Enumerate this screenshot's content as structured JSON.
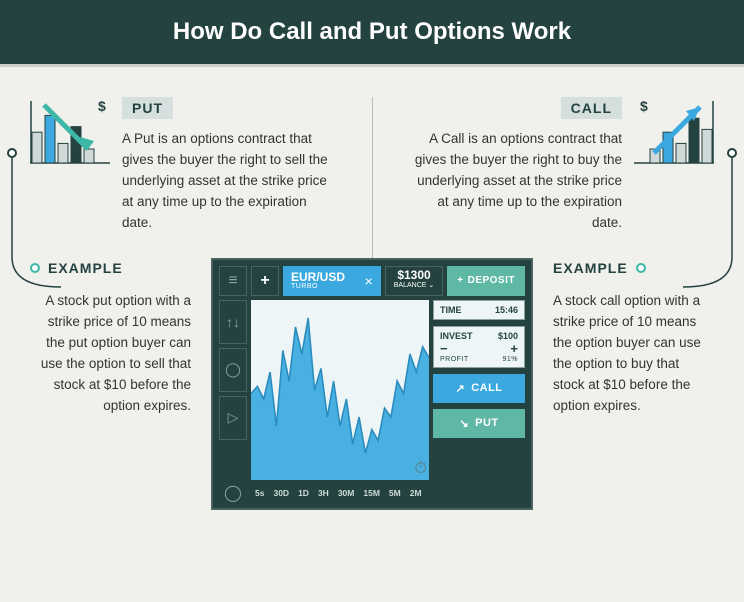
{
  "header": {
    "title": "How Do Call and Put Options Work"
  },
  "colors": {
    "bg_dark": "#24423f",
    "bg_light": "#f0f0ed",
    "teal": "#5fb7a6",
    "teal_light": "#3db7a6",
    "blue": "#3ba9e0",
    "tag_bg": "#d4dfde",
    "text": "#333333",
    "chart_bg": "#eef5f7",
    "muted": "#8aa3a0"
  },
  "put": {
    "tag": "PUT",
    "definition": "A Put is an options contract that gives the buyer the right to sell the underlying asset at the strike price at any time up to the expiration date.",
    "illus": {
      "bars": [
        0.55,
        0.85,
        0.35,
        0.65,
        0.25
      ],
      "bar_colors": [
        "#cfd9d7",
        "#3ba9e0",
        "#cfd9d7",
        "#24423f",
        "#cfd9d7"
      ],
      "arrow_color": "#3db7a6",
      "arrow_dir": "down",
      "dollar": "$"
    },
    "example_label": "EXAMPLE",
    "example": "A stock put option with a strike price of 10 means the put option buyer can use the option to sell that stock at $10 before the option expires."
  },
  "call": {
    "tag": "CALL",
    "definition": "A Call is an options contract that gives the buyer the right to buy the underlying asset at the strike price at any time up to the expiration date.",
    "illus": {
      "bars": [
        0.25,
        0.55,
        0.35,
        0.8,
        0.6
      ],
      "bar_colors": [
        "#cfd9d7",
        "#3ba9e0",
        "#cfd9d7",
        "#24423f",
        "#cfd9d7"
      ],
      "arrow_color": "#3ba9e0",
      "arrow_dir": "up",
      "dollar": "$"
    },
    "example_label": "EXAMPLE",
    "example": "A stock call option with a strike price of 10 means the option buyer can use the option to buy that stock at $10 before the option expires."
  },
  "widget": {
    "menu_icon": "≡",
    "add_icon": "+",
    "pair": "EUR/USD",
    "pair_sub": "TURBO",
    "close_icon": "×",
    "balance_amount": "$1300",
    "balance_label": "BALANCE ⌄",
    "deposit_label": "DEPOSIT",
    "deposit_icon": "+",
    "side_icons": [
      "↑↓",
      "◯",
      "▷"
    ],
    "chart": {
      "type": "area",
      "points": [
        0.48,
        0.52,
        0.45,
        0.6,
        0.3,
        0.72,
        0.55,
        0.85,
        0.7,
        0.9,
        0.5,
        0.62,
        0.35,
        0.55,
        0.3,
        0.45,
        0.2,
        0.35,
        0.15,
        0.28,
        0.22,
        0.4,
        0.35,
        0.55,
        0.48,
        0.7,
        0.6,
        0.74,
        0.68
      ],
      "fill": "#3ba9e0",
      "stroke": "#2a8bbd",
      "bg": "#eef5f7",
      "ylim": [
        0,
        1
      ]
    },
    "time_label": "TIME",
    "time_value": "15:46",
    "invest_label": "INVEST",
    "invest_value": "$100",
    "minus": "−",
    "plus": "+",
    "profit_label": "PROFIT",
    "profit_value": "91%",
    "call_btn": "CALL",
    "call_arrow": "↗",
    "put_btn": "PUT",
    "put_arrow": "↘",
    "stopwatch_icon": "⏱",
    "bottom_icon": "◯",
    "timeframes": [
      "5s",
      "30D",
      "1D",
      "3H",
      "30M",
      "15M",
      "5M",
      "2M"
    ]
  }
}
